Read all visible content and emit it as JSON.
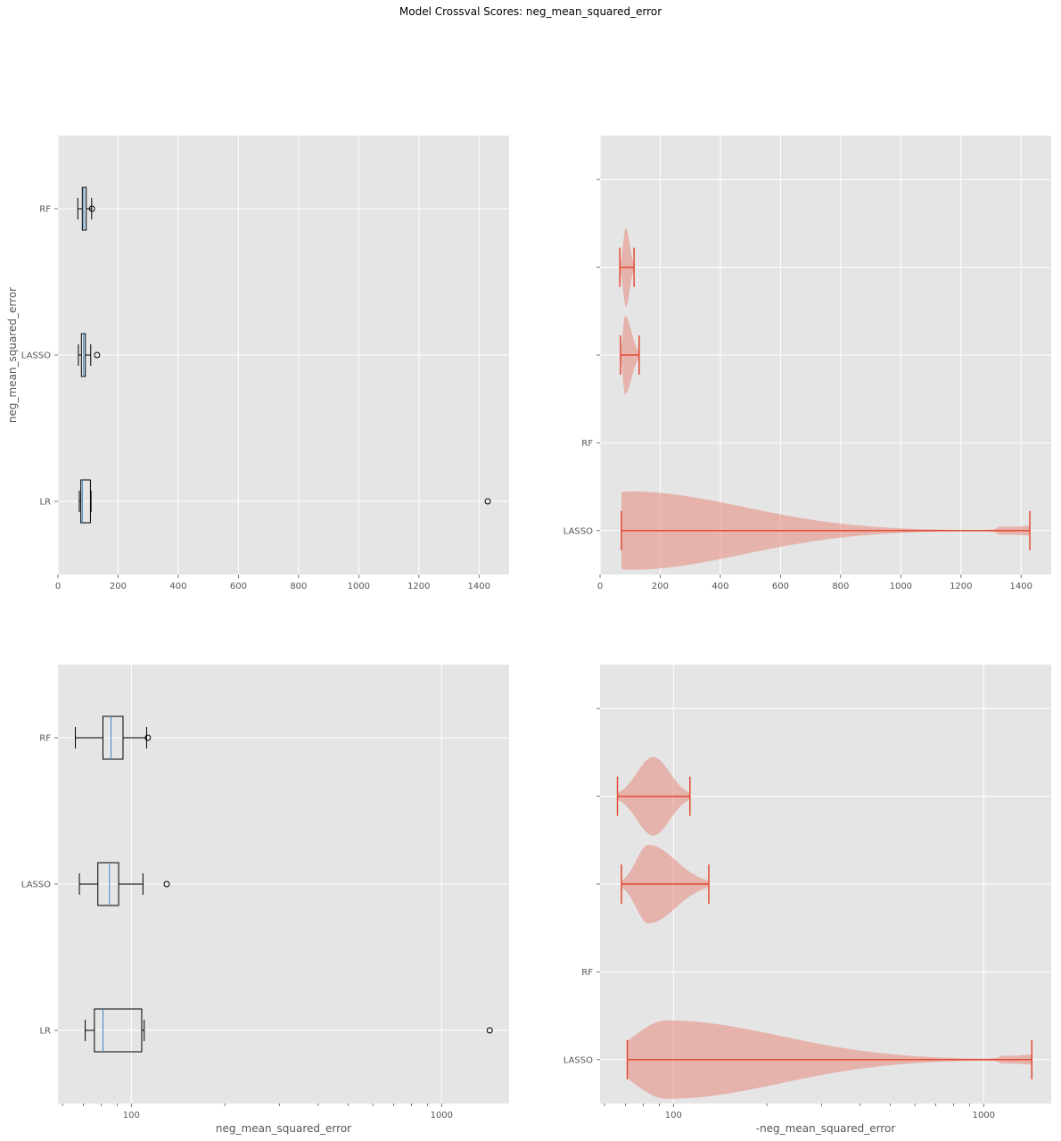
{
  "title": "Model Crossval Scores: neg_mean_squared_error",
  "colors": {
    "panel_bg": "#e5e5e5",
    "grid": "#ffffff",
    "box": "#000000",
    "median": "#3a86c8",
    "violin_fill": "#e58a7d",
    "violin_line": "#e24a33"
  },
  "chart_data": [
    {
      "type": "box",
      "orientation": "horizontal",
      "xscale": "linear",
      "xlim": [
        0,
        1500
      ],
      "xticks": [
        0,
        200,
        400,
        600,
        800,
        1000,
        1200,
        1400
      ],
      "xlabel": "",
      "ylabel": "neg_mean_squared_error",
      "ytick_labels": [
        "LR",
        "LASSO",
        "RF"
      ],
      "grid": true,
      "series": [
        {
          "label": "LR",
          "whisker_low": 71,
          "q1": 76,
          "median": 81,
          "q3": 108,
          "whisker_high": 110,
          "fliers": [
            1429
          ]
        },
        {
          "label": "LASSO",
          "whisker_low": 68,
          "q1": 78,
          "median": 85,
          "q3": 91,
          "whisker_high": 109,
          "fliers": [
            130
          ]
        },
        {
          "label": "RF",
          "whisker_low": 66,
          "q1": 81,
          "median": 86,
          "q3": 94,
          "whisker_high": 112,
          "fliers": [
            113
          ]
        }
      ]
    },
    {
      "type": "violin",
      "orientation": "horizontal",
      "xscale": "linear",
      "xlim": [
        0,
        1500
      ],
      "xticks": [
        0,
        200,
        400,
        600,
        800,
        1000,
        1200,
        1400
      ],
      "xlabel": "",
      "ytick_labels": [
        "LASSO",
        "RF",
        "",
        "",
        ""
      ],
      "grid": true,
      "series": [
        {
          "position": 1,
          "min": 71,
          "max": 1429,
          "peak": 95
        },
        {
          "position": 3,
          "min": 68,
          "max": 130,
          "peak": 83
        },
        {
          "position": 4,
          "min": 66,
          "max": 113,
          "peak": 86
        }
      ]
    },
    {
      "type": "box",
      "orientation": "horizontal",
      "xscale": "log",
      "xlim": [
        58,
        1650
      ],
      "xticks": [
        100,
        1000
      ],
      "xlabel": "neg_mean_squared_error",
      "ytick_labels": [
        "LR",
        "LASSO",
        "RF"
      ],
      "grid": true,
      "series": [
        {
          "label": "LR",
          "whisker_low": 71,
          "q1": 76,
          "median": 81,
          "q3": 108,
          "whisker_high": 110,
          "fliers": [
            1429
          ]
        },
        {
          "label": "LASSO",
          "whisker_low": 68,
          "q1": 78,
          "median": 85,
          "q3": 91,
          "whisker_high": 109,
          "fliers": [
            130
          ]
        },
        {
          "label": "RF",
          "whisker_low": 66,
          "q1": 81,
          "median": 86,
          "q3": 94,
          "whisker_high": 112,
          "fliers": [
            113
          ]
        }
      ]
    },
    {
      "type": "violin",
      "orientation": "horizontal",
      "xscale": "log",
      "xlim": [
        58,
        1650
      ],
      "xticks": [
        100,
        1000
      ],
      "xlabel": "-neg_mean_squared_error",
      "ytick_labels": [
        "LASSO",
        "RF",
        "",
        "",
        ""
      ],
      "grid": true,
      "series": [
        {
          "position": 1,
          "min": 71,
          "max": 1429,
          "peak": 95
        },
        {
          "position": 3,
          "min": 68,
          "max": 130,
          "peak": 83
        },
        {
          "position": 4,
          "min": 66,
          "max": 113,
          "peak": 86
        }
      ]
    }
  ]
}
